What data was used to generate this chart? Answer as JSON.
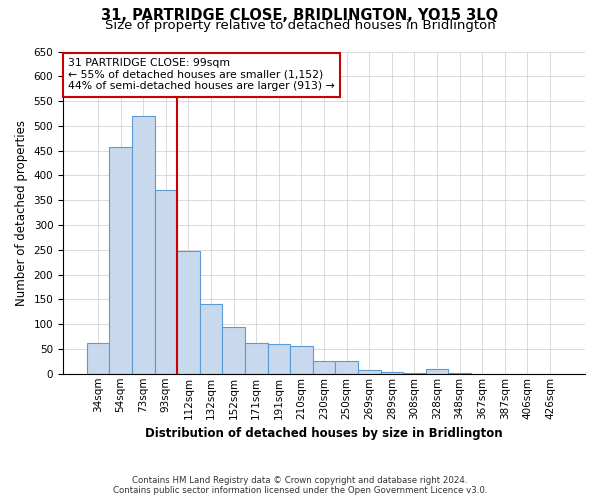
{
  "title": "31, PARTRIDGE CLOSE, BRIDLINGTON, YO15 3LQ",
  "subtitle": "Size of property relative to detached houses in Bridlington",
  "xlabel": "Distribution of detached houses by size in Bridlington",
  "ylabel": "Number of detached properties",
  "footer_line1": "Contains HM Land Registry data © Crown copyright and database right 2024.",
  "footer_line2": "Contains public sector information licensed under the Open Government Licence v3.0.",
  "categories": [
    "34sqm",
    "54sqm",
    "73sqm",
    "93sqm",
    "112sqm",
    "132sqm",
    "152sqm",
    "171sqm",
    "191sqm",
    "210sqm",
    "230sqm",
    "250sqm",
    "269sqm",
    "289sqm",
    "308sqm",
    "328sqm",
    "348sqm",
    "367sqm",
    "387sqm",
    "406sqm",
    "426sqm"
  ],
  "values": [
    62,
    458,
    520,
    370,
    248,
    140,
    95,
    62,
    60,
    57,
    25,
    25,
    8,
    4,
    1,
    9,
    1,
    0,
    0,
    0,
    0
  ],
  "bar_color": "#c8d9ed",
  "bar_edge_color": "#5b9bd5",
  "red_line_x": 3,
  "annotation_text_line1": "31 PARTRIDGE CLOSE: 99sqm",
  "annotation_text_line2": "← 55% of detached houses are smaller (1,152)",
  "annotation_text_line3": "44% of semi-detached houses are larger (913) →",
  "annotation_box_color": "#ffffff",
  "annotation_box_edge_color": "#cc0000",
  "ylim": [
    0,
    650
  ],
  "yticks": [
    0,
    50,
    100,
    150,
    200,
    250,
    300,
    350,
    400,
    450,
    500,
    550,
    600,
    650
  ],
  "bg_color": "#ffffff",
  "grid_color": "#cccccc",
  "title_fontsize": 10.5,
  "subtitle_fontsize": 9.5,
  "xlabel_fontsize": 8.5,
  "ylabel_fontsize": 8.5,
  "annot_fontsize": 7.8,
  "tick_fontsize": 7.5
}
